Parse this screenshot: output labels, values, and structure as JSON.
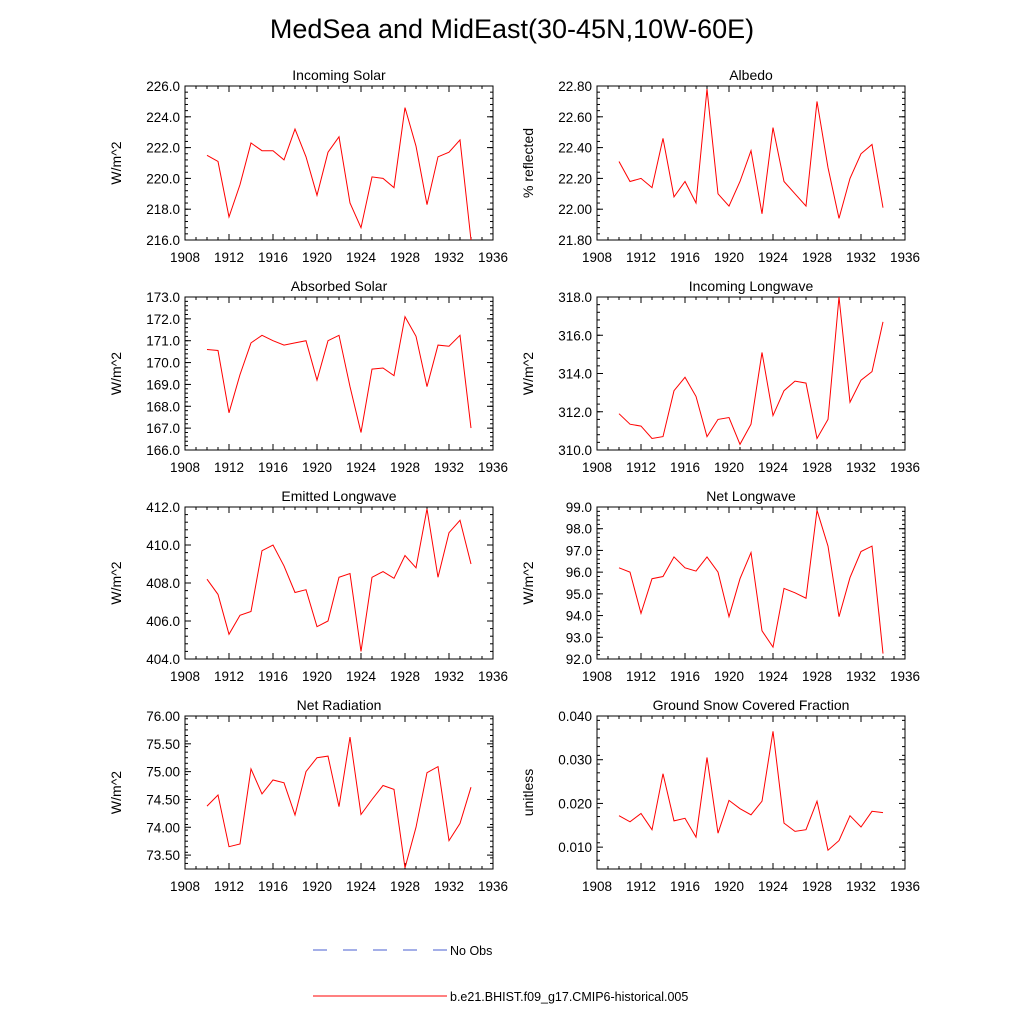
{
  "title": "MedSea and MidEast(30-45N,10W-60E)",
  "colors": {
    "model": "#ff0000",
    "obs": "#4a5fd0",
    "axis": "#000000"
  },
  "legend": {
    "obs_label": "No Obs",
    "model_label": "b.e21.BHIST.f09_g17.CMIP6-historical.005"
  },
  "chart_data": [
    {
      "type": "line",
      "title": "Incoming Solar",
      "ylabel": "W/m^2",
      "xlim": [
        1908,
        1936
      ],
      "xticks": [
        "1908",
        "1912",
        "1916",
        "1920",
        "1924",
        "1928",
        "1932",
        "1936"
      ],
      "ylim": [
        216.0,
        226.0
      ],
      "yticks": [
        "216.0",
        "218.0",
        "220.0",
        "222.0",
        "224.0",
        "226.0"
      ],
      "series": [
        {
          "name": "b.e21.BHIST.f09_g17.CMIP6-historical.005",
          "x": [
            1910,
            1911,
            1912,
            1913,
            1914,
            1915,
            1916,
            1917,
            1918,
            1919,
            1920,
            1921,
            1922,
            1923,
            1924,
            1925,
            1926,
            1927,
            1928,
            1929,
            1930,
            1931,
            1932,
            1933,
            1934
          ],
          "values": [
            221.5,
            221.1,
            217.5,
            219.6,
            222.3,
            221.8,
            221.8,
            221.2,
            223.2,
            221.4,
            218.9,
            221.7,
            222.7,
            218.4,
            216.8,
            220.1,
            220.0,
            219.4,
            224.6,
            222.1,
            218.3,
            221.4,
            221.7,
            222.5,
            215.8
          ]
        }
      ]
    },
    {
      "type": "line",
      "title": "Albedo",
      "ylabel": "% reflected",
      "xlim": [
        1908,
        1936
      ],
      "xticks": [
        "1908",
        "1912",
        "1916",
        "1920",
        "1924",
        "1928",
        "1932",
        "1936"
      ],
      "ylim": [
        21.8,
        22.8
      ],
      "yticks": [
        "21.80",
        "22.00",
        "22.20",
        "22.40",
        "22.60",
        "22.80"
      ],
      "series": [
        {
          "name": "b.e21.BHIST.f09_g17.CMIP6-historical.005",
          "x": [
            1910,
            1911,
            1912,
            1913,
            1914,
            1915,
            1916,
            1917,
            1918,
            1919,
            1920,
            1921,
            1922,
            1923,
            1924,
            1925,
            1926,
            1927,
            1928,
            1929,
            1930,
            1931,
            1932,
            1933,
            1934
          ],
          "values": [
            22.31,
            22.18,
            22.2,
            22.14,
            22.46,
            22.08,
            22.18,
            22.04,
            22.78,
            22.1,
            22.02,
            22.18,
            22.38,
            21.97,
            22.53,
            22.18,
            22.1,
            22.02,
            22.7,
            22.27,
            21.94,
            22.2,
            22.36,
            22.42,
            22.01
          ]
        }
      ]
    },
    {
      "type": "line",
      "title": "Absorbed Solar",
      "ylabel": "W/m^2",
      "xlim": [
        1908,
        1936
      ],
      "xticks": [
        "1908",
        "1912",
        "1916",
        "1920",
        "1924",
        "1928",
        "1932",
        "1936"
      ],
      "ylim": [
        166.0,
        173.0
      ],
      "yticks": [
        "166.0",
        "167.0",
        "168.0",
        "169.0",
        "170.0",
        "171.0",
        "172.0",
        "173.0"
      ],
      "series": [
        {
          "name": "b.e21.BHIST.f09_g17.CMIP6-historical.005",
          "x": [
            1910,
            1911,
            1912,
            1913,
            1914,
            1915,
            1916,
            1917,
            1918,
            1919,
            1920,
            1921,
            1922,
            1923,
            1924,
            1925,
            1926,
            1927,
            1928,
            1929,
            1930,
            1931,
            1932,
            1933,
            1934
          ],
          "values": [
            170.6,
            170.55,
            167.7,
            169.45,
            170.9,
            171.25,
            171.0,
            170.8,
            170.9,
            171.0,
            169.2,
            171.0,
            171.25,
            168.9,
            166.8,
            169.7,
            169.75,
            169.4,
            172.1,
            171.2,
            168.9,
            170.8,
            170.75,
            171.25,
            167.0
          ]
        }
      ]
    },
    {
      "type": "line",
      "title": "Incoming Longwave",
      "ylabel": "W/m^2",
      "xlim": [
        1908,
        1936
      ],
      "xticks": [
        "1908",
        "1912",
        "1916",
        "1920",
        "1924",
        "1928",
        "1932",
        "1936"
      ],
      "ylim": [
        310.0,
        318.0
      ],
      "yticks": [
        "310.0",
        "312.0",
        "314.0",
        "316.0",
        "318.0"
      ],
      "series": [
        {
          "name": "b.e21.BHIST.f09_g17.CMIP6-historical.005",
          "x": [
            1910,
            1911,
            1912,
            1913,
            1914,
            1915,
            1916,
            1917,
            1918,
            1919,
            1920,
            1921,
            1922,
            1923,
            1924,
            1925,
            1926,
            1927,
            1928,
            1929,
            1930,
            1931,
            1932,
            1933,
            1934
          ],
          "values": [
            311.9,
            311.35,
            311.25,
            310.6,
            310.7,
            313.1,
            313.8,
            312.8,
            310.7,
            311.6,
            311.7,
            310.3,
            311.35,
            315.1,
            311.8,
            313.1,
            313.6,
            313.5,
            310.6,
            311.6,
            318.0,
            312.5,
            313.65,
            314.1,
            316.7
          ]
        }
      ]
    },
    {
      "type": "line",
      "title": "Emitted Longwave",
      "ylabel": "W/m^2",
      "xlim": [
        1908,
        1936
      ],
      "xticks": [
        "1908",
        "1912",
        "1916",
        "1920",
        "1924",
        "1928",
        "1932",
        "1936"
      ],
      "ylim": [
        404.0,
        412.0
      ],
      "yticks": [
        "404.0",
        "406.0",
        "408.0",
        "410.0",
        "412.0"
      ],
      "series": [
        {
          "name": "b.e21.BHIST.f09_g17.CMIP6-historical.005",
          "x": [
            1910,
            1911,
            1912,
            1913,
            1914,
            1915,
            1916,
            1917,
            1918,
            1919,
            1920,
            1921,
            1922,
            1923,
            1924,
            1925,
            1926,
            1927,
            1928,
            1929,
            1930,
            1931,
            1932,
            1933,
            1934
          ],
          "values": [
            408.2,
            407.4,
            405.3,
            406.3,
            406.5,
            409.7,
            410.0,
            408.9,
            407.5,
            407.65,
            405.7,
            406.0,
            408.3,
            408.5,
            404.4,
            408.3,
            408.6,
            408.25,
            409.45,
            408.8,
            411.9,
            408.3,
            410.65,
            411.3,
            409.0
          ]
        }
      ]
    },
    {
      "type": "line",
      "title": "Net Longwave",
      "ylabel": "W/m^2",
      "xlim": [
        1908,
        1936
      ],
      "xticks": [
        "1908",
        "1912",
        "1916",
        "1920",
        "1924",
        "1928",
        "1932",
        "1936"
      ],
      "ylim": [
        92.0,
        99.0
      ],
      "yticks": [
        "92.0",
        "93.0",
        "94.0",
        "95.0",
        "96.0",
        "97.0",
        "98.0",
        "99.0"
      ],
      "series": [
        {
          "name": "b.e21.BHIST.f09_g17.CMIP6-historical.005",
          "x": [
            1910,
            1911,
            1912,
            1913,
            1914,
            1915,
            1916,
            1917,
            1918,
            1919,
            1920,
            1921,
            1922,
            1923,
            1924,
            1925,
            1926,
            1927,
            1928,
            1929,
            1930,
            1931,
            1932,
            1933,
            1934
          ],
          "values": [
            96.2,
            96.0,
            94.1,
            95.7,
            95.8,
            96.7,
            96.2,
            96.05,
            96.7,
            96.0,
            93.95,
            95.7,
            96.9,
            93.3,
            92.55,
            95.25,
            95.05,
            94.8,
            98.85,
            97.2,
            93.95,
            95.75,
            96.95,
            97.2,
            92.25
          ]
        }
      ]
    },
    {
      "type": "line",
      "title": "Net Radiation",
      "ylabel": "W/m^2",
      "xlim": [
        1908,
        1936
      ],
      "xticks": [
        "1908",
        "1912",
        "1916",
        "1920",
        "1924",
        "1928",
        "1932",
        "1936"
      ],
      "ylim": [
        73.25,
        76.0
      ],
      "yticks": [
        "73.50",
        "74.00",
        "74.50",
        "75.00",
        "75.50",
        "76.00"
      ],
      "series": [
        {
          "name": "b.e21.BHIST.f09_g17.CMIP6-historical.005",
          "x": [
            1910,
            1911,
            1912,
            1913,
            1914,
            1915,
            1916,
            1917,
            1918,
            1919,
            1920,
            1921,
            1922,
            1923,
            1924,
            1925,
            1926,
            1927,
            1928,
            1929,
            1930,
            1931,
            1932,
            1933,
            1934
          ],
          "values": [
            74.38,
            74.58,
            73.65,
            73.7,
            75.05,
            74.6,
            74.85,
            74.8,
            74.22,
            75.0,
            75.25,
            75.28,
            74.37,
            75.62,
            74.23,
            74.5,
            74.75,
            74.68,
            73.27,
            74.0,
            74.98,
            75.09,
            73.76,
            74.07,
            74.72
          ]
        }
      ]
    },
    {
      "type": "line",
      "title": "Ground Snow Covered Fraction",
      "ylabel": "unitless",
      "xlim": [
        1908,
        1936
      ],
      "xticks": [
        "1908",
        "1912",
        "1916",
        "1920",
        "1924",
        "1928",
        "1932",
        "1936"
      ],
      "ylim": [
        0.005,
        0.04
      ],
      "yticks": [
        "0.010",
        "0.020",
        "0.030",
        "0.040"
      ],
      "series": [
        {
          "name": "b.e21.BHIST.f09_g17.CMIP6-historical.005",
          "x": [
            1910,
            1911,
            1912,
            1913,
            1914,
            1915,
            1916,
            1917,
            1918,
            1919,
            1920,
            1921,
            1922,
            1923,
            1924,
            1925,
            1926,
            1927,
            1928,
            1929,
            1930,
            1931,
            1932,
            1933,
            1934
          ],
          "values": [
            0.0172,
            0.0158,
            0.0177,
            0.014,
            0.0268,
            0.016,
            0.0166,
            0.0123,
            0.0305,
            0.0132,
            0.0207,
            0.0188,
            0.0174,
            0.0205,
            0.0365,
            0.0155,
            0.0136,
            0.014,
            0.0205,
            0.0093,
            0.0115,
            0.0172,
            0.0146,
            0.0182,
            0.0179
          ]
        }
      ]
    }
  ]
}
